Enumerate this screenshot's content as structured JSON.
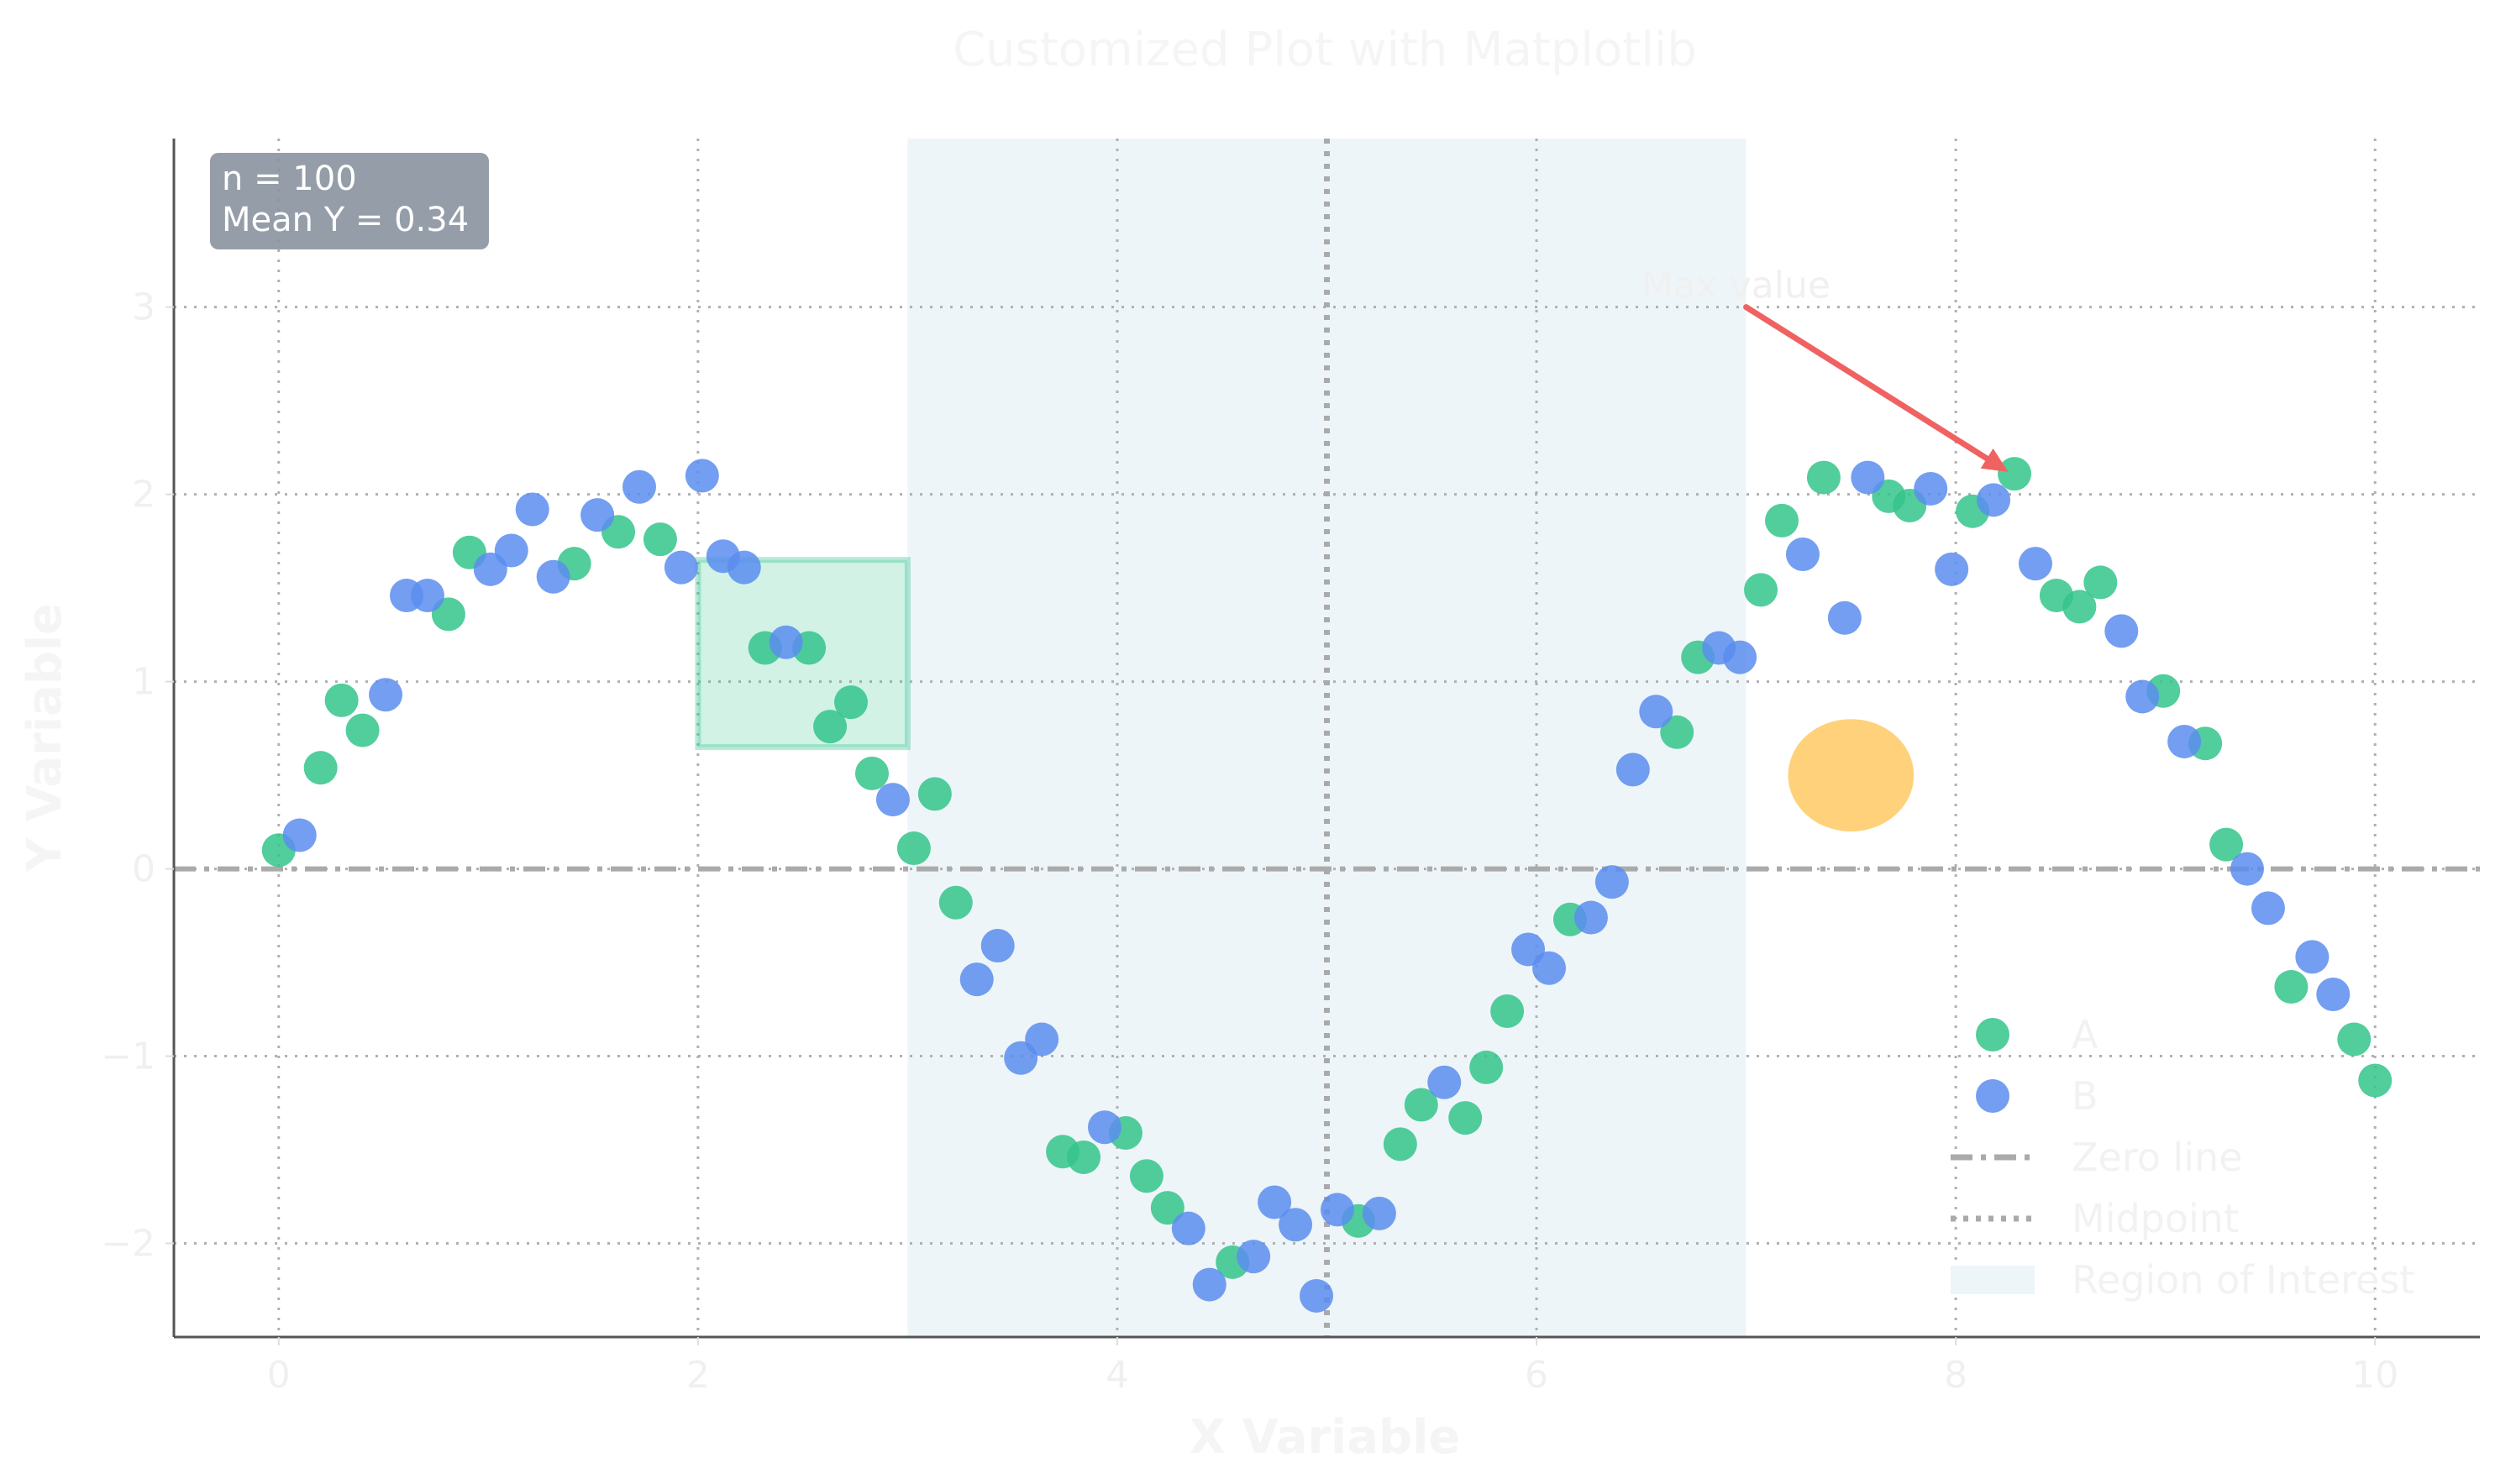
{
  "chart_data": {
    "type": "scatter",
    "title": "Customized Plot with Matplotlib",
    "xlabel": "X Variable",
    "ylabel": "Y Variable",
    "xlim": [
      -0.5,
      10.5
    ],
    "ylim": [
      -2.5,
      3.9
    ],
    "xticks": [
      0,
      2,
      4,
      6,
      8,
      10
    ],
    "yticks": [
      -2,
      -1,
      0,
      1,
      2,
      3
    ],
    "xtick_labels": [
      "0",
      "2",
      "4",
      "6",
      "8",
      "10"
    ],
    "ytick_labels": [
      "−2",
      "−1",
      "0",
      "1",
      "2",
      "3"
    ],
    "grid": true,
    "legend_position": "lower-right",
    "colors": {
      "A": "#34c48b",
      "B": "#5b8def",
      "zero_line": "#aaaaaa",
      "midpoint": "#aaaaaa",
      "region": "#eef5f8",
      "rectangle": "#34c48b",
      "ellipse": "#ffc24d",
      "arrow": "#f06262",
      "stats_box": "#8a939e"
    },
    "series": [
      {
        "name": "A",
        "points": [
          [
            0.0,
            0.1
          ],
          [
            0.2,
            0.54
          ],
          [
            0.3,
            0.9
          ],
          [
            0.4,
            0.74
          ],
          [
            0.81,
            1.36
          ],
          [
            0.91,
            1.69
          ],
          [
            1.41,
            1.63
          ],
          [
            1.62,
            1.8
          ],
          [
            1.82,
            1.76
          ],
          [
            2.32,
            1.18
          ],
          [
            2.53,
            1.18
          ],
          [
            2.63,
            0.76
          ],
          [
            2.73,
            0.89
          ],
          [
            2.83,
            0.51
          ],
          [
            3.03,
            0.11
          ],
          [
            3.13,
            0.4
          ],
          [
            3.23,
            -0.18
          ],
          [
            3.74,
            -1.51
          ],
          [
            3.84,
            -1.54
          ],
          [
            4.04,
            -1.41
          ],
          [
            4.14,
            -1.64
          ],
          [
            4.24,
            -1.81
          ],
          [
            4.55,
            -2.1
          ],
          [
            5.15,
            -1.88
          ],
          [
            5.35,
            -1.47
          ],
          [
            5.45,
            -1.26
          ],
          [
            5.66,
            -1.33
          ],
          [
            5.76,
            -1.06
          ],
          [
            5.86,
            -0.76
          ],
          [
            6.16,
            -0.27
          ],
          [
            6.67,
            0.73
          ],
          [
            6.77,
            1.13
          ],
          [
            7.07,
            1.49
          ],
          [
            7.17,
            1.86
          ],
          [
            7.37,
            2.09
          ],
          [
            7.68,
            1.99
          ],
          [
            7.78,
            1.94
          ],
          [
            8.08,
            1.91
          ],
          [
            8.28,
            2.11
          ],
          [
            8.48,
            1.46
          ],
          [
            8.59,
            1.4
          ],
          [
            8.69,
            1.53
          ],
          [
            8.99,
            0.95
          ],
          [
            9.19,
            0.67
          ],
          [
            9.29,
            0.13
          ],
          [
            9.6,
            -0.63
          ],
          [
            9.9,
            -0.91
          ],
          [
            10.0,
            -1.13
          ]
        ]
      },
      {
        "name": "B",
        "points": [
          [
            0.1,
            0.18
          ],
          [
            0.51,
            0.93
          ],
          [
            0.61,
            1.46
          ],
          [
            0.71,
            1.46
          ],
          [
            1.01,
            1.6
          ],
          [
            1.11,
            1.7
          ],
          [
            1.21,
            1.92
          ],
          [
            1.31,
            1.56
          ],
          [
            1.52,
            1.89
          ],
          [
            1.72,
            2.04
          ],
          [
            1.92,
            1.61
          ],
          [
            2.02,
            2.1
          ],
          [
            2.12,
            1.67
          ],
          [
            2.22,
            1.61
          ],
          [
            2.42,
            1.21
          ],
          [
            2.93,
            0.37
          ],
          [
            3.33,
            -0.59
          ],
          [
            3.43,
            -0.41
          ],
          [
            3.54,
            -1.01
          ],
          [
            3.64,
            -0.91
          ],
          [
            3.94,
            -1.38
          ],
          [
            4.34,
            -1.92
          ],
          [
            4.44,
            -2.22
          ],
          [
            4.65,
            -2.07
          ],
          [
            4.75,
            -1.78
          ],
          [
            4.85,
            -1.9
          ],
          [
            4.95,
            -2.28
          ],
          [
            5.05,
            -1.82
          ],
          [
            5.25,
            -1.84
          ],
          [
            5.56,
            -1.14
          ],
          [
            5.96,
            -0.43
          ],
          [
            6.06,
            -0.53
          ],
          [
            6.26,
            -0.26
          ],
          [
            6.36,
            -0.07
          ],
          [
            6.46,
            0.53
          ],
          [
            6.57,
            0.84
          ],
          [
            6.87,
            1.18
          ],
          [
            6.97,
            1.13
          ],
          [
            7.27,
            1.68
          ],
          [
            7.47,
            1.34
          ],
          [
            7.58,
            2.09
          ],
          [
            7.88,
            2.03
          ],
          [
            7.98,
            1.6
          ],
          [
            8.18,
            1.97
          ],
          [
            8.38,
            1.63
          ],
          [
            8.79,
            1.27
          ],
          [
            8.89,
            0.92
          ],
          [
            9.09,
            0.68
          ],
          [
            9.39,
            0.0
          ],
          [
            9.49,
            -0.21
          ],
          [
            9.7,
            -0.47
          ],
          [
            9.8,
            -0.67
          ]
        ]
      }
    ],
    "reference_lines": [
      {
        "name": "Zero line",
        "orientation": "horizontal",
        "value": 0
      },
      {
        "name": "Midpoint",
        "orientation": "vertical",
        "value": 5
      }
    ],
    "region": {
      "name": "Region of Interest",
      "x_range": [
        3,
        7
      ]
    },
    "shapes": [
      {
        "type": "rectangle",
        "x": [
          2,
          3
        ],
        "y": [
          0.65,
          1.65
        ]
      },
      {
        "type": "ellipse",
        "center": [
          7.5,
          0.5
        ],
        "width": 0.6,
        "height": 0.6
      }
    ],
    "annotation": {
      "text": "Max value",
      "point": [
        8.25,
        2.12
      ],
      "text_anchor_point": [
        6.5,
        3.05
      ],
      "tail_point": [
        7.0,
        3.0
      ]
    },
    "stats": {
      "line1": "n = 100",
      "line2": "Mean Y = 0.34"
    },
    "legend": [
      {
        "label": "A",
        "kind": "marker",
        "series": "A"
      },
      {
        "label": "B",
        "kind": "marker",
        "series": "B"
      },
      {
        "label": "Zero line",
        "kind": "dashed"
      },
      {
        "label": "Midpoint",
        "kind": "dotted"
      },
      {
        "label": "Region of Interest",
        "kind": "patch"
      }
    ]
  }
}
